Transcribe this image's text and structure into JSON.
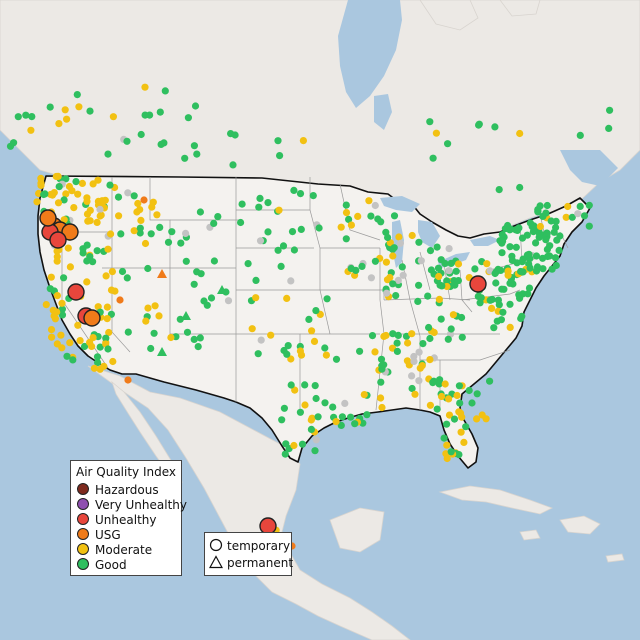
{
  "legend": {
    "title": "Air Quality Index",
    "categories": [
      {
        "label": "Hazardous",
        "color": "#7e2a1e"
      },
      {
        "label": "Very Unhealthy",
        "color": "#8f4fb0"
      },
      {
        "label": "Unhealthy",
        "color": "#e8463c"
      },
      {
        "label": "USG",
        "color": "#f07b1a"
      },
      {
        "label": "Moderate",
        "color": "#f2c112"
      },
      {
        "label": "Good",
        "color": "#2fbf5f"
      }
    ]
  },
  "type_legend": {
    "temporary_label": "temporary",
    "permanent_label": "permanent"
  },
  "colors": {
    "ocean": "#aac7df",
    "land": "#ece9e5",
    "us_land": "#f4f2ef",
    "boundary": "#111111",
    "state_lines": "#9a9a9a",
    "no_data": "#c3c3c3"
  },
  "icons": {
    "temporary": "circle-icon",
    "permanent": "triangle-icon"
  }
}
